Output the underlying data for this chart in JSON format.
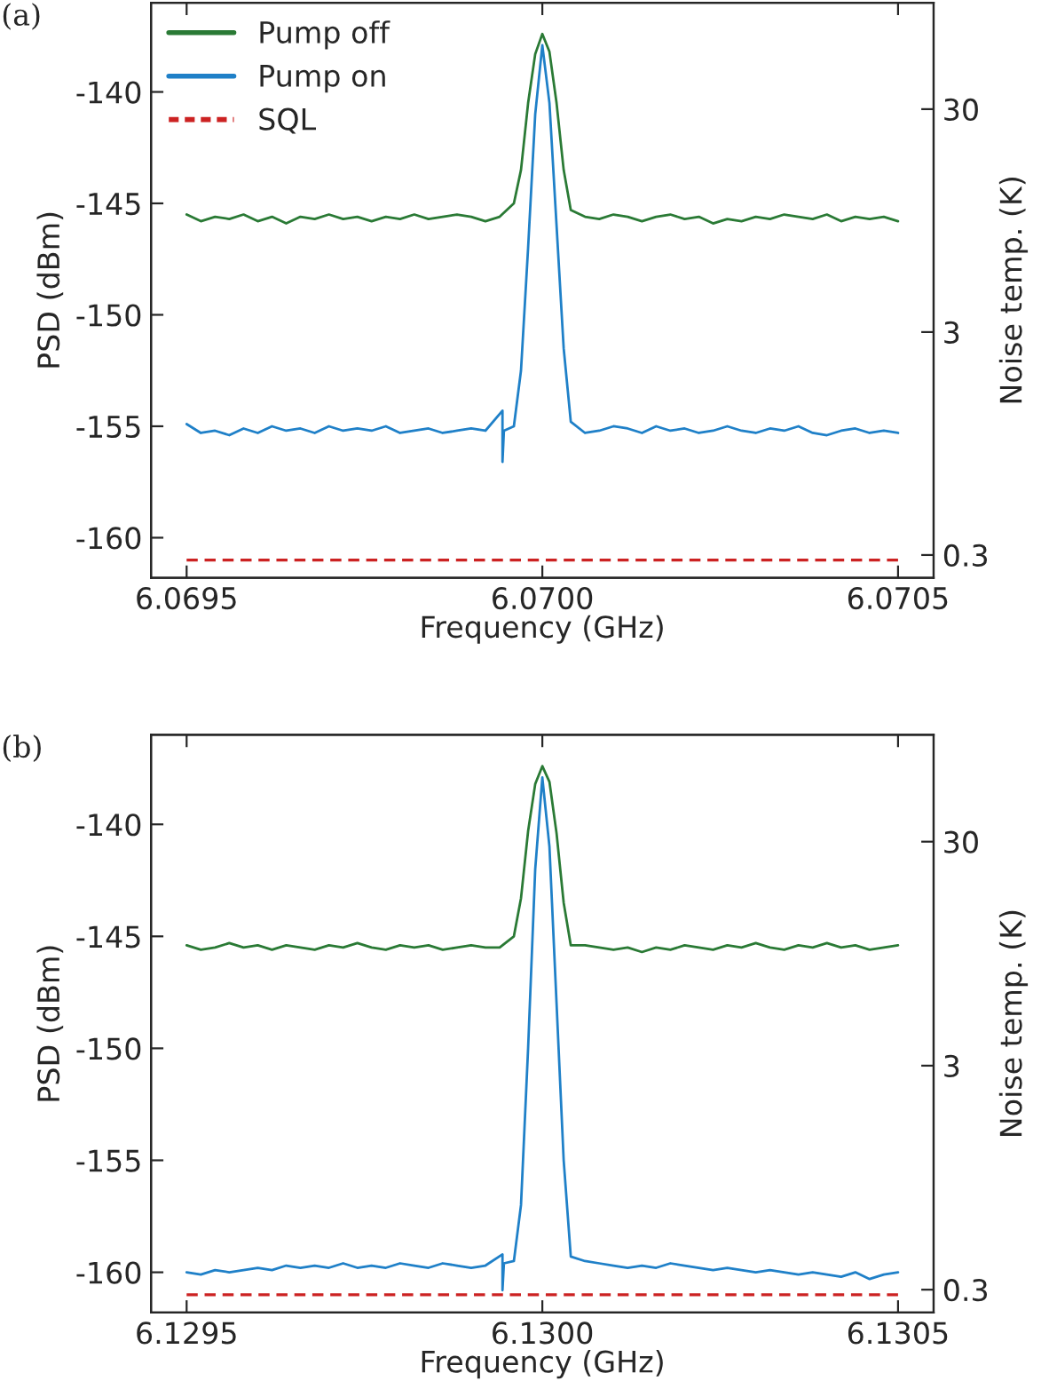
{
  "chart_data": [
    {
      "type": "line",
      "annotations": [
        "(a)"
      ],
      "xlabel": "Frequency (GHz)",
      "ylabel": "PSD (dBm)",
      "y2label": "Noise temp. (K)",
      "log": "y2",
      "legend": "top left",
      "xlim": [
        6.06945,
        6.07055
      ],
      "xticks": [
        {
          "value": 6.0695,
          "label": "6.0695"
        },
        {
          "value": 6.07,
          "label": "6.0700"
        },
        {
          "value": 6.0705,
          "label": "6.0705"
        }
      ],
      "ylim": [
        -161.8,
        -136
      ],
      "yticks": [
        -160,
        -155,
        -150,
        -145,
        -140
      ],
      "y2lim": [
        0.237,
        90
      ],
      "y2ticks": [
        {
          "value": 0.3,
          "label": "0.3"
        },
        {
          "value": 3,
          "label": "3"
        },
        {
          "value": 30,
          "label": "30"
        }
      ],
      "series": [
        {
          "name": "Pump off",
          "color": "#2a7a35",
          "line_style": "solid",
          "x": [
            6.0695,
            6.06952,
            6.06954,
            6.06956,
            6.06958,
            6.0696,
            6.06962,
            6.06964,
            6.06966,
            6.06968,
            6.0697,
            6.06972,
            6.06974,
            6.06976,
            6.06978,
            6.0698,
            6.06982,
            6.06984,
            6.06986,
            6.06988,
            6.0699,
            6.06992,
            6.06994,
            6.06996,
            6.06997,
            6.06998,
            6.06999,
            6.07,
            6.07001,
            6.07002,
            6.07003,
            6.07004,
            6.07006,
            6.07008,
            6.0701,
            6.07012,
            6.07014,
            6.07016,
            6.07018,
            6.0702,
            6.07022,
            6.07024,
            6.07026,
            6.07028,
            6.0703,
            6.07032,
            6.07034,
            6.07036,
            6.07038,
            6.0704,
            6.07042,
            6.07044,
            6.07046,
            6.07048,
            6.0705
          ],
          "values": [
            -145.5,
            -145.8,
            -145.6,
            -145.7,
            -145.5,
            -145.8,
            -145.6,
            -145.9,
            -145.6,
            -145.7,
            -145.5,
            -145.7,
            -145.6,
            -145.8,
            -145.6,
            -145.7,
            -145.5,
            -145.7,
            -145.6,
            -145.5,
            -145.6,
            -145.8,
            -145.6,
            -145.0,
            -143.5,
            -140.5,
            -138.3,
            -137.4,
            -138.2,
            -140.5,
            -143.5,
            -145.3,
            -145.6,
            -145.7,
            -145.5,
            -145.6,
            -145.8,
            -145.6,
            -145.5,
            -145.7,
            -145.6,
            -145.9,
            -145.7,
            -145.8,
            -145.6,
            -145.7,
            -145.5,
            -145.6,
            -145.7,
            -145.5,
            -145.8,
            -145.6,
            -145.7,
            -145.6,
            -145.8
          ]
        },
        {
          "name": "Pump on",
          "color": "#1f80c8",
          "line_style": "solid",
          "x": [
            6.0695,
            6.06952,
            6.06954,
            6.06956,
            6.06958,
            6.0696,
            6.06962,
            6.06964,
            6.06966,
            6.06968,
            6.0697,
            6.06972,
            6.06974,
            6.06976,
            6.06978,
            6.0698,
            6.06982,
            6.06984,
            6.06986,
            6.06988,
            6.0699,
            6.06992,
            6.069944,
            6.069944,
            6.069946,
            6.06996,
            6.06997,
            6.06998,
            6.06999,
            6.07,
            6.07001,
            6.07002,
            6.07003,
            6.07004,
            6.07006,
            6.07008,
            6.0701,
            6.07012,
            6.07014,
            6.07016,
            6.07018,
            6.0702,
            6.07022,
            6.07024,
            6.07026,
            6.07028,
            6.0703,
            6.07032,
            6.07034,
            6.07036,
            6.07038,
            6.0704,
            6.07042,
            6.07044,
            6.07046,
            6.07048,
            6.0705
          ],
          "values": [
            -154.9,
            -155.3,
            -155.2,
            -155.4,
            -155.1,
            -155.3,
            -155.0,
            -155.2,
            -155.1,
            -155.3,
            -155.0,
            -155.2,
            -155.1,
            -155.2,
            -155.0,
            -155.3,
            -155.2,
            -155.1,
            -155.3,
            -155.2,
            -155.1,
            -155.2,
            -154.3,
            -156.6,
            -155.2,
            -155.0,
            -152.5,
            -147,
            -141,
            -137.9,
            -140.5,
            -146,
            -151.5,
            -154.8,
            -155.3,
            -155.2,
            -155.0,
            -155.1,
            -155.3,
            -155.0,
            -155.2,
            -155.1,
            -155.3,
            -155.2,
            -155.0,
            -155.2,
            -155.3,
            -155.1,
            -155.2,
            -155.0,
            -155.3,
            -155.4,
            -155.2,
            -155.1,
            -155.3,
            -155.2,
            -155.3
          ]
        },
        {
          "name": "SQL",
          "color": "#cc2222",
          "line_style": "dashed",
          "x": [
            6.0695,
            6.0705
          ],
          "values": [
            -161,
            -161
          ]
        }
      ]
    },
    {
      "type": "line",
      "annotations": [
        "(b)"
      ],
      "xlabel": "Frequency (GHz)",
      "ylabel": "PSD (dBm)",
      "y2label": "Noise temp. (K)",
      "log": "y2",
      "xlim": [
        6.12945,
        6.13055
      ],
      "xticks": [
        {
          "value": 6.1295,
          "label": "6.1295"
        },
        {
          "value": 6.13,
          "label": "6.1300"
        },
        {
          "value": 6.1305,
          "label": "6.1305"
        }
      ],
      "ylim": [
        -161.8,
        -136
      ],
      "yticks": [
        -160,
        -155,
        -150,
        -145,
        -140
      ],
      "y2lim": [
        0.237,
        90
      ],
      "y2ticks": [
        {
          "value": 0.3,
          "label": "0.3"
        },
        {
          "value": 3,
          "label": "3"
        },
        {
          "value": 30,
          "label": "30"
        }
      ],
      "series": [
        {
          "color": "#2a7a35",
          "line_style": "solid",
          "x": [
            6.1295,
            6.12952,
            6.12954,
            6.12956,
            6.12958,
            6.1296,
            6.12962,
            6.12964,
            6.12966,
            6.12968,
            6.1297,
            6.12972,
            6.12974,
            6.12976,
            6.12978,
            6.1298,
            6.12982,
            6.12984,
            6.12986,
            6.12988,
            6.1299,
            6.12992,
            6.12994,
            6.12996,
            6.12997,
            6.12998,
            6.12999,
            6.13,
            6.13001,
            6.13002,
            6.13003,
            6.13004,
            6.13006,
            6.13008,
            6.1301,
            6.13012,
            6.13014,
            6.13016,
            6.13018,
            6.1302,
            6.13022,
            6.13024,
            6.13026,
            6.13028,
            6.1303,
            6.13032,
            6.13034,
            6.13036,
            6.13038,
            6.1304,
            6.13042,
            6.13044,
            6.13046,
            6.13048,
            6.1305
          ],
          "values": [
            -145.4,
            -145.6,
            -145.5,
            -145.3,
            -145.5,
            -145.4,
            -145.6,
            -145.4,
            -145.5,
            -145.6,
            -145.4,
            -145.5,
            -145.3,
            -145.5,
            -145.6,
            -145.4,
            -145.5,
            -145.4,
            -145.6,
            -145.5,
            -145.4,
            -145.5,
            -145.5,
            -145.0,
            -143.3,
            -140.3,
            -138.2,
            -137.4,
            -138.1,
            -140.4,
            -143.5,
            -145.4,
            -145.4,
            -145.5,
            -145.6,
            -145.5,
            -145.7,
            -145.5,
            -145.6,
            -145.4,
            -145.5,
            -145.6,
            -145.4,
            -145.5,
            -145.3,
            -145.5,
            -145.6,
            -145.4,
            -145.5,
            -145.3,
            -145.5,
            -145.4,
            -145.6,
            -145.5,
            -145.4
          ]
        },
        {
          "color": "#1f80c8",
          "line_style": "solid",
          "x": [
            6.1295,
            6.12952,
            6.12954,
            6.12956,
            6.12958,
            6.1296,
            6.12962,
            6.12964,
            6.12966,
            6.12968,
            6.1297,
            6.12972,
            6.12974,
            6.12976,
            6.12978,
            6.1298,
            6.12982,
            6.12984,
            6.12986,
            6.12988,
            6.1299,
            6.12992,
            6.129944,
            6.129944,
            6.129946,
            6.12996,
            6.12997,
            6.12998,
            6.12999,
            6.13,
            6.13001,
            6.13002,
            6.13003,
            6.13004,
            6.13006,
            6.13008,
            6.1301,
            6.13012,
            6.13014,
            6.13016,
            6.13018,
            6.1302,
            6.13022,
            6.13024,
            6.13026,
            6.13028,
            6.1303,
            6.13032,
            6.13034,
            6.13036,
            6.13038,
            6.1304,
            6.13042,
            6.13044,
            6.13046,
            6.13048,
            6.1305
          ],
          "values": [
            -160.0,
            -160.1,
            -159.9,
            -160.0,
            -159.9,
            -159.8,
            -159.9,
            -159.7,
            -159.8,
            -159.7,
            -159.8,
            -159.6,
            -159.8,
            -159.7,
            -159.8,
            -159.6,
            -159.7,
            -159.8,
            -159.6,
            -159.7,
            -159.8,
            -159.7,
            -159.2,
            -160.8,
            -159.6,
            -159.5,
            -157.0,
            -150,
            -142,
            -137.9,
            -141,
            -148,
            -155,
            -159.3,
            -159.5,
            -159.6,
            -159.7,
            -159.8,
            -159.7,
            -159.8,
            -159.6,
            -159.7,
            -159.8,
            -159.9,
            -159.8,
            -159.9,
            -160.0,
            -159.9,
            -160.0,
            -160.1,
            -160.0,
            -160.1,
            -160.2,
            -160.0,
            -160.3,
            -160.1,
            -160.0
          ]
        },
        {
          "color": "#cc2222",
          "line_style": "dashed",
          "x": [
            6.1295,
            6.1305
          ],
          "values": [
            -161,
            -161
          ]
        }
      ]
    }
  ]
}
